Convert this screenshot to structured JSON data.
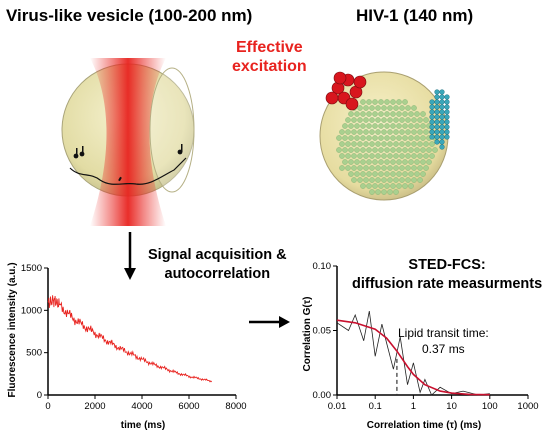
{
  "titles": {
    "left": "Virus-like vesicle (100-200 nm)",
    "right": "HIV-1 (140 nm)"
  },
  "annotations": {
    "effective_line1": "Effective",
    "effective_line2": "excitation",
    "signal_line1": "Signal acquisition &",
    "signal_line2": "autocorrelation",
    "stedfcs_line1": "STED-FCS:",
    "stedfcs_line2": "diffusion rate measurments",
    "lipid_line1": "Lipid transit time:",
    "lipid_line2": "0.37 ms"
  },
  "colors": {
    "excitation": "#e8231f",
    "trace": "#e8231f",
    "fit": "#c8102e",
    "data": "#222222",
    "vesicle": "#e9e4b0",
    "hiv_red": "#d8161e",
    "hiv_teal": "#3aa6b9",
    "hiv_green": "#9cc98c"
  },
  "chart_data": [
    {
      "type": "line",
      "xlabel": "time (ms)",
      "ylabel": "Fluorescence intensity (a.u.)",
      "xlim": [
        0,
        8000
      ],
      "ylim": [
        0,
        1500
      ],
      "xticks": [
        0,
        2000,
        4000,
        6000,
        8000
      ],
      "yticks": [
        0,
        500,
        1000,
        1500
      ],
      "series": [
        {
          "x": [
            0,
            250,
            500,
            1000,
            1500,
            2000,
            2500,
            3000,
            3500,
            4000,
            4500,
            5000,
            5500,
            6000,
            6500,
            7000
          ],
          "values": [
            1080,
            1120,
            1060,
            920,
            820,
            730,
            640,
            560,
            490,
            420,
            360,
            310,
            260,
            220,
            190,
            160
          ]
        }
      ]
    },
    {
      "type": "line",
      "xlabel": "Correlation time (τ) (ms)",
      "ylabel": "Correlation G(τ)",
      "xscale": "log",
      "xlim": [
        0.01,
        1000
      ],
      "ylim": [
        0,
        0.1
      ],
      "xticks": [
        0.01,
        0.1,
        1,
        10,
        100,
        1000
      ],
      "xticklabels": [
        "0.01",
        "0.1",
        "1",
        "10",
        "100",
        "1000"
      ],
      "yticks": [
        0,
        0.05,
        0.1
      ],
      "yticklabels": [
        "0.00",
        "0.05",
        "0.10"
      ],
      "series": [
        {
          "x": [
            0.01,
            0.02,
            0.03,
            0.05,
            0.07,
            0.1,
            0.15,
            0.2,
            0.3,
            0.45,
            0.7,
            1,
            1.5,
            2,
            3,
            5,
            10,
            20,
            50,
            100
          ],
          "values": [
            0.056,
            0.05,
            0.062,
            0.042,
            0.065,
            0.03,
            0.055,
            0.04,
            0.02,
            0.045,
            0.008,
            0.025,
            0.002,
            0.012,
            0.0,
            0.006,
            0.001,
            0.003,
            0.0,
            0.001
          ]
        },
        {
          "x": [
            0.01,
            0.03,
            0.1,
            0.2,
            0.37,
            0.7,
            1,
            2,
            5,
            10,
            30,
            100
          ],
          "values": [
            0.058,
            0.056,
            0.051,
            0.044,
            0.034,
            0.022,
            0.016,
            0.008,
            0.003,
            0.0015,
            0.0005,
            0.0002
          ]
        }
      ],
      "annotation_x": 0.37
    }
  ]
}
